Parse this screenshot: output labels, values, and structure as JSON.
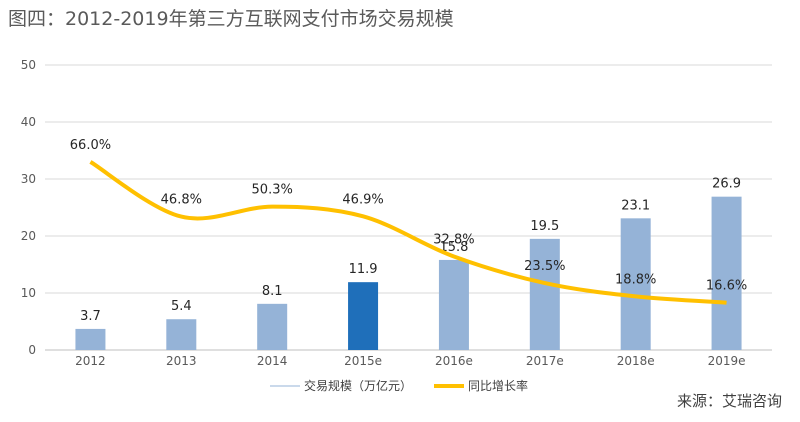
{
  "title": "图四：2012-2019年第三方互联网支付市场交易规模",
  "source": "来源：艾瑞咨询",
  "chart_data": {
    "type": "bar",
    "categories": [
      "2012",
      "2013",
      "2014",
      "2015e",
      "2016e",
      "2017e",
      "2018e",
      "2019e"
    ],
    "series": [
      {
        "name": "交易规模（万亿元）",
        "type": "bar",
        "values": [
          3.7,
          5.4,
          8.1,
          11.9,
          15.8,
          19.5,
          23.1,
          26.9
        ],
        "value_labels": [
          "3.7",
          "5.4",
          "8.1",
          "11.9",
          "15.8",
          "19.5",
          "23.1",
          "26.9"
        ]
      },
      {
        "name": "同比增长率",
        "type": "line",
        "values": [
          66.0,
          46.8,
          50.3,
          46.9,
          32.8,
          23.5,
          18.8,
          16.6
        ],
        "value_labels": [
          "66.0%",
          "46.8%",
          "50.3%",
          "46.9%",
          "32.8%",
          "23.5%",
          "18.8%",
          "16.6%"
        ]
      }
    ],
    "y_ticks": [
      "0",
      "10",
      "20",
      "30",
      "40",
      "50"
    ],
    "ylim": [
      0,
      50
    ],
    "rate_axis_hidden_range": [
      0,
      100
    ],
    "highlighted_category": "2015e",
    "grid": true,
    "legend_position": "bottom",
    "colors": {
      "bar": "#95b3d7",
      "bar_highlight": "#1f6fba",
      "line": "#ffc000",
      "grid": "#d9d9d9"
    }
  }
}
